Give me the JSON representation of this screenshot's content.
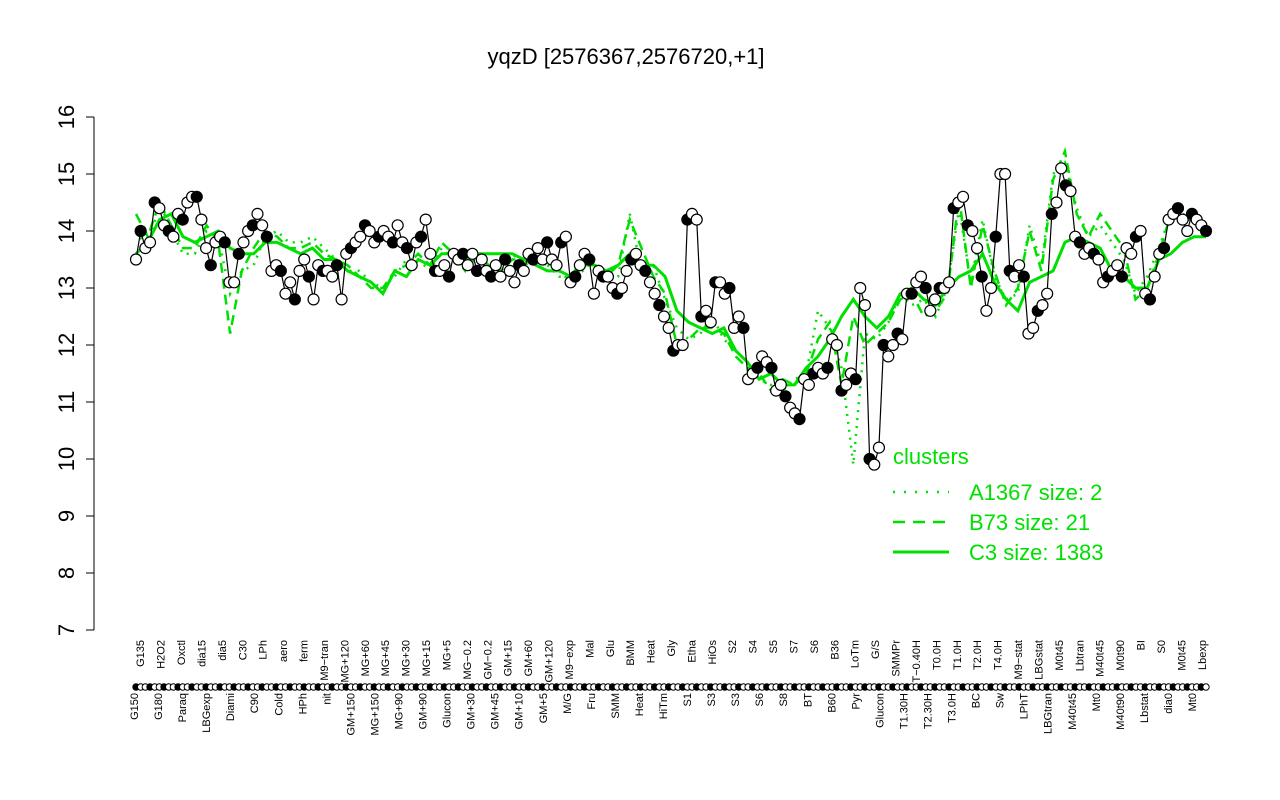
{
  "chart_data": {
    "type": "line",
    "title": "yqzD [2576367,2576720,+1]",
    "xlabel": "",
    "ylabel": "",
    "ylim": [
      7,
      16
    ],
    "yticks": [
      7,
      8,
      9,
      10,
      11,
      12,
      13,
      14,
      15,
      16
    ],
    "accent_color": "#00e000",
    "x_tick_labels_top": [
      "G135",
      "H2O2",
      "Oxctl",
      "dia15",
      "dia5",
      "C30",
      "LPh",
      "aero",
      "ferm",
      "M9−tran",
      "MG+120",
      "MG+60",
      "MG+45",
      "MG+30",
      "MG+15",
      "MG+5",
      "MG−0.2",
      "GM−0.2",
      "GM+15",
      "GM+60",
      "GM+120",
      "M9−exp",
      "Mal",
      "Glu",
      "BMM",
      "Heat",
      "Gly",
      "Etha",
      "HiOs",
      "S2",
      "S4",
      "S5",
      "S7",
      "S6",
      "B36",
      "LoTm",
      "G/S",
      "SMMPr",
      "T−0.40H",
      "T0.0H",
      "T1.0H",
      "T2.0H",
      "T4.0H",
      "M9−stat",
      "LBGstat",
      "M0t45",
      "Lbtran",
      "M40t45",
      "M0t90",
      "BI",
      "S0",
      "M0t45",
      "Lbexp"
    ],
    "x_tick_labels_bottom": [
      "G150",
      "G180",
      "Paraq",
      "LBGexp",
      "Diami",
      "C90",
      "Cold",
      "HPh",
      "nit",
      "GM+150",
      "MG+150",
      "MG+90",
      "GM+90",
      "Glucon",
      "GM+30",
      "GM+45",
      "GM+10",
      "GM+5",
      "M/G",
      "Fru",
      "SMM",
      "Heat",
      "HiTm",
      "S1",
      "S3",
      "S3",
      "S6",
      "S8",
      "BT",
      "B60",
      "Pyr",
      "Glucon",
      "T1.30H",
      "T2.30H",
      "T3.0H",
      "BC",
      "Sw",
      "LPhT",
      "LBGtran",
      "M40t45",
      "Mt0",
      "M40t90",
      "Lbstat",
      "dia0",
      "Mt0"
    ],
    "series": [
      {
        "name": "C3 size: 1383",
        "style": "solid",
        "values": [
          13.6,
          13.8,
          14.2,
          14.3,
          13.9,
          13.8,
          13.9,
          14.0,
          13.7,
          13.6,
          13.6,
          13.8,
          13.8,
          13.7,
          13.6,
          13.7,
          13.5,
          13.5,
          13.3,
          13.2,
          13.1,
          12.9,
          13.3,
          13.2,
          13.5,
          13.4,
          13.6,
          13.6,
          13.5,
          13.6,
          13.6,
          13.6,
          13.6,
          13.5,
          13.4,
          13.3,
          13.3,
          13.2,
          13.5,
          13.4,
          13.3,
          13.4,
          13.6,
          13.4,
          13.4,
          13.2,
          12.6,
          12.4,
          12.3,
          12.2,
          12.3,
          11.9,
          11.7,
          11.4,
          11.5,
          11.3,
          11.3,
          11.6,
          11.8,
          12.1,
          12.5,
          12.8,
          12.5,
          12.3,
          12.5,
          12.9,
          13.0,
          12.8,
          12.7,
          13.0,
          13.2,
          13.3,
          13.6,
          13.1,
          12.8,
          12.6,
          13.1,
          13.2,
          13.3,
          13.8,
          13.9,
          13.8,
          13.7,
          13.3,
          13.2,
          13.0,
          13.0,
          13.5,
          13.6,
          13.8,
          13.9,
          13.9
        ]
      },
      {
        "name": "B73 size: 21",
        "style": "dashed",
        "values": [
          14.3,
          13.9,
          14.5,
          14.1,
          13.7,
          13.7,
          14.1,
          13.8,
          12.2,
          13.3,
          13.7,
          14.0,
          13.9,
          13.7,
          13.7,
          13.8,
          13.6,
          13.5,
          13.4,
          13.2,
          13.0,
          13.0,
          13.3,
          13.4,
          13.6,
          13.4,
          13.8,
          13.6,
          13.3,
          13.6,
          13.4,
          13.3,
          13.5,
          13.5,
          13.5,
          13.4,
          13.3,
          13.1,
          13.4,
          13.4,
          13.2,
          13.4,
          14.2,
          13.7,
          13.2,
          12.9,
          12.0,
          12.1,
          12.3,
          12.3,
          12.2,
          11.8,
          11.6,
          11.5,
          11.2,
          11.4,
          11.3,
          11.5,
          12.1,
          12.4,
          11.3,
          12.5,
          12.0,
          12.2,
          12.4,
          12.8,
          12.9,
          12.5,
          12.6,
          12.9,
          14.6,
          13.0,
          14.1,
          13.3,
          12.7,
          13.0,
          14.0,
          13.3,
          14.9,
          15.4,
          14.3,
          13.9,
          14.3,
          14.0,
          13.7,
          12.8,
          13.0,
          13.6,
          14.3,
          14.2,
          14.2,
          14.0
        ]
      },
      {
        "name": "A1367 size: 2",
        "style": "dotted",
        "values": [
          14.0,
          13.7,
          14.5,
          14.0,
          13.6,
          13.6,
          14.0,
          13.9,
          12.9,
          13.3,
          13.4,
          13.9,
          14.0,
          13.8,
          13.8,
          13.9,
          13.7,
          13.5,
          13.3,
          13.3,
          13.1,
          13.0,
          13.2,
          13.5,
          13.5,
          13.3,
          13.7,
          13.5,
          13.4,
          13.5,
          13.3,
          13.3,
          13.6,
          13.4,
          13.5,
          13.4,
          13.2,
          13.2,
          13.3,
          13.5,
          13.1,
          13.2,
          14.3,
          13.3,
          13.4,
          12.8,
          12.3,
          12.1,
          12.2,
          12.5,
          12.1,
          11.9,
          11.7,
          11.4,
          11.3,
          11.2,
          11.4,
          11.5,
          12.6,
          12.3,
          11.6,
          9.9,
          12.2,
          12.1,
          12.4,
          12.9,
          12.7,
          12.8,
          12.5,
          13.0,
          14.4,
          13.1,
          14.2,
          13.2,
          12.8,
          12.9,
          14.1,
          13.4,
          15.0,
          15.2,
          14.4,
          13.9,
          14.1,
          13.8,
          13.5,
          12.9,
          13.2,
          13.7,
          14.3,
          14.3,
          14.2,
          14.1
        ]
      },
      {
        "name": "yqzD",
        "style": "points",
        "values": [
          13.5,
          14.0,
          13.7,
          13.8,
          14.5,
          14.4,
          14.1,
          14.0,
          13.9,
          14.3,
          14.2,
          14.5,
          14.6,
          14.6,
          14.2,
          13.7,
          13.4,
          13.8,
          13.9,
          13.8,
          13.1,
          13.1,
          13.6,
          13.8,
          14.0,
          14.1,
          14.3,
          14.1,
          13.9,
          13.3,
          13.4,
          13.3,
          12.9,
          13.1,
          12.8,
          13.3,
          13.5,
          13.2,
          12.8,
          13.4,
          13.3,
          13.3,
          13.2,
          13.4,
          12.8,
          13.6,
          13.7,
          13.8,
          13.9,
          14.1,
          14.0,
          13.8,
          13.9,
          14.0,
          13.9,
          13.8,
          14.1,
          13.8,
          13.7,
          13.4,
          13.8,
          13.9,
          14.2,
          13.6,
          13.3,
          13.3,
          13.4,
          13.2,
          13.6,
          13.5,
          13.6,
          13.4,
          13.6,
          13.3,
          13.5,
          13.3,
          13.2,
          13.4,
          13.2,
          13.5,
          13.3,
          13.1,
          13.4,
          13.3,
          13.6,
          13.5,
          13.7,
          13.5,
          13.8,
          13.5,
          13.4,
          13.8,
          13.9,
          13.1,
          13.2,
          13.4,
          13.6,
          13.5,
          12.9,
          13.3,
          13.2,
          13.2,
          13.0,
          12.9,
          13.0,
          13.3,
          13.5,
          13.6,
          13.4,
          13.3,
          13.1,
          12.9,
          12.7,
          12.5,
          12.3,
          11.9,
          12.0,
          12.0,
          14.2,
          14.3,
          14.2,
          12.5,
          12.6,
          12.4,
          13.1,
          13.1,
          12.9,
          13.0,
          12.3,
          12.5,
          12.3,
          11.4,
          11.5,
          11.6,
          11.8,
          11.7,
          11.6,
          11.2,
          11.3,
          11.1,
          10.9,
          10.8,
          10.7,
          11.4,
          11.3,
          11.5,
          11.6,
          11.5,
          11.6,
          12.1,
          12.0,
          11.2,
          11.3,
          11.5,
          11.4,
          13.0,
          12.7,
          10.0,
          9.9,
          10.2,
          12.0,
          11.8,
          12.0,
          12.2,
          12.1,
          12.9,
          12.9,
          13.1,
          13.2,
          13.0,
          12.6,
          12.8,
          13.0,
          13.0,
          13.1,
          14.4,
          14.5,
          14.6,
          14.1,
          14.0,
          13.7,
          13.2,
          12.6,
          13.0,
          13.9,
          15.0,
          15.0,
          13.3,
          13.2,
          13.4,
          13.2,
          12.2,
          12.3,
          12.6,
          12.7,
          12.9,
          14.3,
          14.5,
          15.1,
          14.8,
          14.7,
          13.9,
          13.8,
          13.6,
          13.7,
          13.6,
          13.5,
          13.1,
          13.2,
          13.3,
          13.4,
          13.2,
          13.7,
          13.6,
          13.9,
          14.0,
          12.9,
          12.8,
          13.2,
          13.6,
          13.7,
          14.2,
          14.3,
          14.4,
          14.2,
          14.0,
          14.3,
          14.2,
          14.1,
          14.0
        ]
      }
    ],
    "legend": {
      "title": "clusters",
      "position": "bottom-right",
      "entries": [
        "A1367 size: 2",
        "B73 size: 21",
        "C3 size: 1383"
      ]
    }
  }
}
